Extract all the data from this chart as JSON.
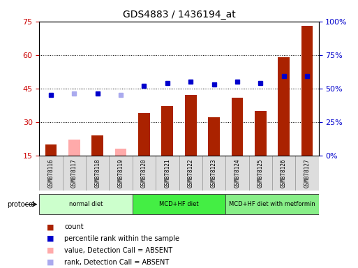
{
  "title": "GDS4883 / 1436194_at",
  "samples": [
    "GSM878116",
    "GSM878117",
    "GSM878118",
    "GSM878119",
    "GSM878120",
    "GSM878121",
    "GSM878122",
    "GSM878123",
    "GSM878124",
    "GSM878125",
    "GSM878126",
    "GSM878127"
  ],
  "count_values": [
    20,
    22,
    24,
    18,
    34,
    37,
    42,
    32,
    41,
    35,
    59,
    73
  ],
  "count_absent": [
    false,
    true,
    false,
    true,
    false,
    false,
    false,
    false,
    false,
    false,
    false,
    false
  ],
  "percentile_values": [
    45,
    46,
    46,
    45,
    52,
    54,
    55,
    53,
    55,
    54,
    59,
    59
  ],
  "percentile_absent": [
    false,
    true,
    false,
    true,
    false,
    false,
    false,
    false,
    false,
    false,
    false,
    false
  ],
  "ylim_left": [
    15,
    75
  ],
  "ylim_right": [
    0,
    100
  ],
  "yticks_left": [
    15,
    30,
    45,
    60,
    75
  ],
  "yticks_right": [
    0,
    25,
    50,
    75,
    100
  ],
  "ytick_labels_right": [
    "0%",
    "25%",
    "50%",
    "75%",
    "100%"
  ],
  "protocols": [
    {
      "label": "normal diet",
      "start": 0,
      "end": 4,
      "color": "#ccffcc"
    },
    {
      "label": "MCD+HF diet",
      "start": 4,
      "end": 8,
      "color": "#44ee44"
    },
    {
      "label": "MCD+HF diet with metformin",
      "start": 8,
      "end": 12,
      "color": "#88ee88"
    }
  ],
  "bar_color_present": "#aa2200",
  "bar_color_absent": "#ffaaaa",
  "dot_color_present": "#0000cc",
  "dot_color_absent": "#aaaaee",
  "axis_color_left": "#cc0000",
  "axis_color_right": "#0000cc",
  "bar_width": 0.5,
  "dotted_grid_lines": [
    30,
    45,
    60
  ],
  "legend_labels": [
    "count",
    "percentile rank within the sample",
    "value, Detection Call = ABSENT",
    "rank, Detection Call = ABSENT"
  ]
}
